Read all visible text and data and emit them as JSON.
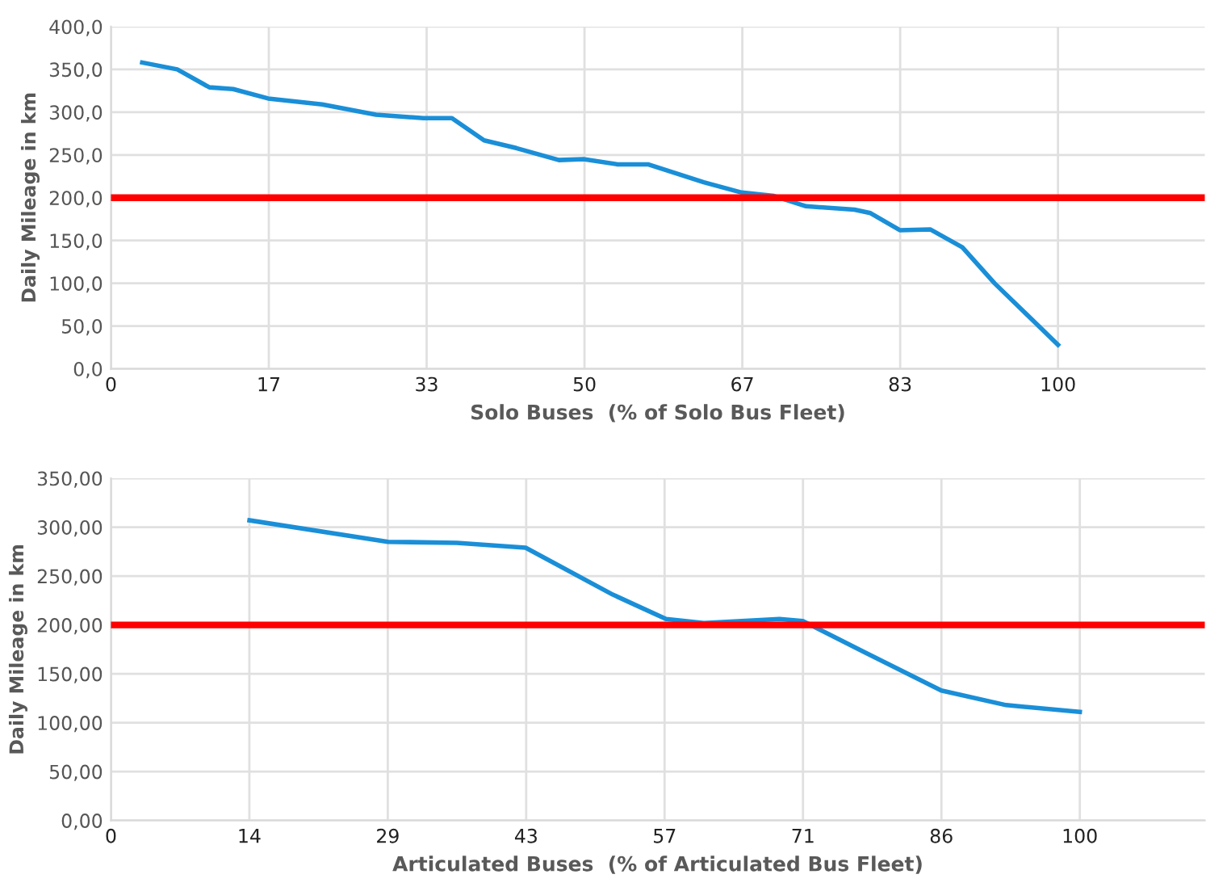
{
  "chart_data": [
    {
      "type": "line",
      "xlabel": "Solo Buses  (% of Solo Bus Fleet)",
      "ylabel": "Daily Mileage in km",
      "xlim": [
        0,
        115.5
      ],
      "xticks": [
        0,
        {
          "value": 16.667,
          "label": "17"
        },
        {
          "value": 33.333,
          "label": "33"
        },
        50,
        {
          "value": 66.667,
          "label": "67"
        },
        {
          "value": 83.333,
          "label": "83"
        },
        100
      ],
      "ylim": [
        0,
        400
      ],
      "yticks": [
        {
          "value": 0,
          "label": "0,0"
        },
        {
          "value": 50,
          "label": "50,0"
        },
        {
          "value": 100,
          "label": "100,0"
        },
        {
          "value": 150,
          "label": "150,0"
        },
        {
          "value": 200,
          "label": "200,0"
        },
        {
          "value": 250,
          "label": "250,0"
        },
        {
          "value": 300,
          "label": "300,0"
        },
        {
          "value": 350,
          "label": "350,0"
        },
        {
          "value": 400,
          "label": "400,0"
        }
      ],
      "grid": true,
      "marker": "none",
      "line_style": "solid",
      "series": [
        {
          "color": "#1a8fd8",
          "x": [
            3.3,
            7,
            10.4,
            12.9,
            16.6,
            22.3,
            28,
            33,
            36,
            39.4,
            42.8,
            47.3,
            49.9,
            53.5,
            56.7,
            62.6,
            66.6,
            70,
            73.4,
            78.5,
            80.2,
            83.3,
            86.5,
            89.9,
            93.3,
            100
          ],
          "values": [
            358,
            350,
            329,
            327,
            316,
            309,
            297,
            293,
            293,
            267,
            258,
            244,
            245,
            239,
            239,
            218,
            206,
            202,
            190,
            186,
            182,
            162,
            163,
            142,
            100,
            28
          ]
        }
      ],
      "ref_lines": [
        {
          "axis": "y",
          "value": 200,
          "color": "#ff0000",
          "line_style": "solid"
        }
      ]
    },
    {
      "type": "line",
      "xlabel": "Articulated Buses  (% of Articulated Bus Fleet)",
      "ylabel": "Daily Mileage in km",
      "xlim": [
        0,
        112.9
      ],
      "xticks": [
        0,
        {
          "value": 14.286,
          "label": "14"
        },
        {
          "value": 28.571,
          "label": "29"
        },
        {
          "value": 42.857,
          "label": "43"
        },
        {
          "value": 57.143,
          "label": "57"
        },
        {
          "value": 71.429,
          "label": "71"
        },
        {
          "value": 85.714,
          "label": "86"
        },
        100
      ],
      "ylim": [
        0,
        350
      ],
      "yticks": [
        {
          "value": 0,
          "label": "0,00"
        },
        {
          "value": 50,
          "label": "50,00"
        },
        {
          "value": 100,
          "label": "100,00"
        },
        {
          "value": 150,
          "label": "150,00"
        },
        {
          "value": 200,
          "label": "200,00"
        },
        {
          "value": 250,
          "label": "250,00"
        },
        {
          "value": 300,
          "label": "300,00"
        },
        {
          "value": 350,
          "label": "350,00"
        }
      ],
      "grid": true,
      "marker": "none",
      "line_style": "solid",
      "series": [
        {
          "color": "#1a8fd8",
          "x": [
            14.3,
            28.6,
            35.7,
            42.8,
            51.8,
            57.3,
            61.2,
            69,
            71.4,
            77.8,
            85.7,
            92.4,
            100
          ],
          "values": [
            307,
            285,
            284,
            279,
            231,
            206,
            202,
            206,
            204,
            172,
            133,
            118,
            111
          ]
        }
      ],
      "ref_lines": [
        {
          "axis": "y",
          "value": 200,
          "color": "#ff0000",
          "line_style": "solid"
        }
      ]
    }
  ]
}
